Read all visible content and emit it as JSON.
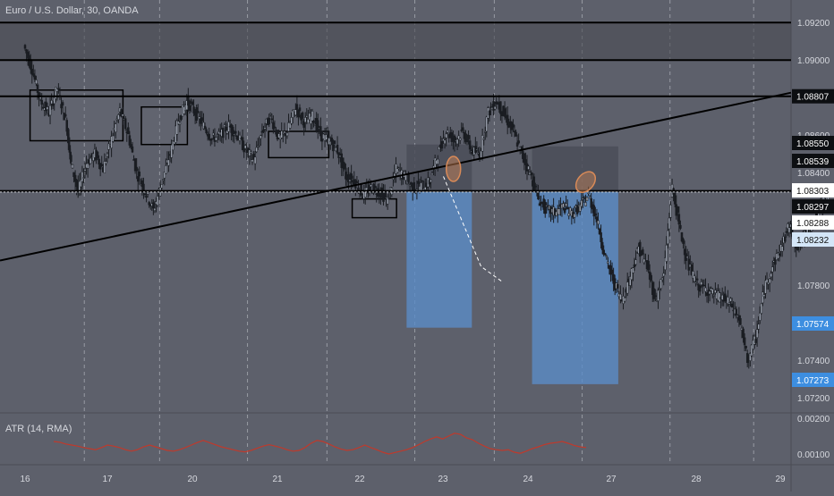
{
  "header": {
    "symbol_title": "Euro / U.S. Dollar, 30, OANDA"
  },
  "indicator": {
    "label": "ATR (14, RMA)"
  },
  "colors": {
    "background": "#5d606b",
    "candle": "#1a1d22",
    "line": "#000000",
    "grid": "#c8cbd2",
    "atr_line": "#c0392b",
    "long_target_box": "#5b8cc7",
    "stop_box": "#4a4d58",
    "highlight_box": "#4b4d53",
    "label_black": "#0d0f12",
    "label_white": "#ffffff",
    "label_blue": "#3d8ee0",
    "label_light_blue": "#d4e6f8",
    "ellipse": "#d88a58"
  },
  "chart_data": [
    {
      "type": "candlestick",
      "title": "Euro / U.S. Dollar, 30, OANDA",
      "x_tick_labels": [
        "16",
        "17",
        "20",
        "21",
        "22",
        "23",
        "24",
        "27",
        "28",
        "29"
      ],
      "y_tick_labels": [
        "1.09200",
        "1.09000",
        "1.08600",
        "1.08400",
        "1.07800",
        "1.07400",
        "1.07200"
      ],
      "ylim": [
        1.0712,
        1.0932
      ],
      "grid": true,
      "horizontal_levels": [
        1.092,
        1.09,
        1.08807,
        1.08303
      ],
      "price_labels": [
        {
          "value": 1.08807,
          "text": "1.08807",
          "style": "black"
        },
        {
          "value": 1.0855,
          "text": "1.08550",
          "style": "black"
        },
        {
          "value": 1.08539,
          "text": "1.08539",
          "style": "black"
        },
        {
          "value": 1.08303,
          "text": "1.08303",
          "style": "white"
        },
        {
          "value": 1.08297,
          "text": "1.08297",
          "style": "black"
        },
        {
          "value": 1.08288,
          "text": "1.08288",
          "style": "white"
        },
        {
          "value": 1.08232,
          "text": "1.08232",
          "style": "lightblue"
        },
        {
          "value": 1.07574,
          "text": "1.07574",
          "style": "blue"
        },
        {
          "value": 1.07273,
          "text": "1.07273",
          "style": "blue"
        }
      ],
      "trendline": {
        "start": [
          1.0,
          1.0796
        ],
        "end": [
          9.35,
          1.0875
        ]
      },
      "consolidation_boxes": [
        {
          "x0": 1.06,
          "x1": 2.17,
          "y0": 1.0857,
          "y1": 1.0884
        },
        {
          "x0": 2.39,
          "x1": 2.94,
          "y0": 1.0855,
          "y1": 1.0875
        },
        {
          "x0": 3.91,
          "x1": 4.63,
          "y0": 1.0848,
          "y1": 1.0862
        },
        {
          "x0": 4.91,
          "x1": 5.44,
          "y0": 1.0816,
          "y1": 1.0826
        }
      ],
      "trade_positions": [
        {
          "side": "short",
          "x0": 5.56,
          "x1": 6.34,
          "entry": 1.083,
          "stop": 1.0855,
          "target": 1.07574
        },
        {
          "side": "short",
          "x0": 7.06,
          "x1": 8.09,
          "entry": 1.083,
          "stop": 1.0854,
          "target": 1.07273
        }
      ],
      "price_path": [
        [
          1.0,
          1.0908
        ],
        [
          1.1,
          1.0895
        ],
        [
          1.2,
          1.0878
        ],
        [
          1.3,
          1.0872
        ],
        [
          1.4,
          1.0885
        ],
        [
          1.5,
          1.0868
        ],
        [
          1.55,
          1.0848
        ],
        [
          1.65,
          1.083
        ],
        [
          1.75,
          1.0845
        ],
        [
          1.85,
          1.085
        ],
        [
          1.95,
          1.0842
        ],
        [
          2.05,
          1.0858
        ],
        [
          2.15,
          1.0873
        ],
        [
          2.25,
          1.086
        ],
        [
          2.35,
          1.084
        ],
        [
          2.45,
          1.083
        ],
        [
          2.55,
          1.082
        ],
        [
          2.65,
          1.0835
        ],
        [
          2.75,
          1.085
        ],
        [
          2.85,
          1.0868
        ],
        [
          2.95,
          1.0878
        ],
        [
          3.05,
          1.0872
        ],
        [
          3.15,
          1.0865
        ],
        [
          3.25,
          1.0858
        ],
        [
          3.35,
          1.086
        ],
        [
          3.45,
          1.0865
        ],
        [
          3.55,
          1.086
        ],
        [
          3.65,
          1.0852
        ],
        [
          3.75,
          1.0847
        ],
        [
          3.85,
          1.0862
        ],
        [
          3.95,
          1.087
        ],
        [
          4.05,
          1.0858
        ],
        [
          4.15,
          1.0862
        ],
        [
          4.25,
          1.0875
        ],
        [
          4.35,
          1.0867
        ],
        [
          4.45,
          1.087
        ],
        [
          4.55,
          1.086
        ],
        [
          4.65,
          1.0857
        ],
        [
          4.75,
          1.0852
        ],
        [
          4.85,
          1.0838
        ],
        [
          4.95,
          1.0836
        ],
        [
          5.05,
          1.0828
        ],
        [
          5.15,
          1.0832
        ],
        [
          5.25,
          1.083
        ],
        [
          5.35,
          1.0825
        ],
        [
          5.45,
          1.0842
        ],
        [
          5.55,
          1.0838
        ],
        [
          5.65,
          1.0832
        ],
        [
          5.75,
          1.0833
        ],
        [
          5.85,
          1.0835
        ],
        [
          5.95,
          1.085
        ],
        [
          6.05,
          1.0862
        ],
        [
          6.15,
          1.0857
        ],
        [
          6.25,
          1.0862
        ],
        [
          6.35,
          1.0852
        ],
        [
          6.45,
          1.085
        ],
        [
          6.55,
          1.0872
        ],
        [
          6.65,
          1.0878
        ],
        [
          6.75,
          1.087
        ],
        [
          6.85,
          1.0862
        ],
        [
          6.95,
          1.085
        ],
        [
          7.05,
          1.084
        ],
        [
          7.15,
          1.0826
        ],
        [
          7.25,
          1.082
        ],
        [
          7.35,
          1.0819
        ],
        [
          7.45,
          1.0822
        ],
        [
          7.55,
          1.0818
        ],
        [
          7.65,
          1.0822
        ],
        [
          7.75,
          1.0828
        ],
        [
          7.85,
          1.0815
        ],
        [
          7.95,
          1.0795
        ],
        [
          8.05,
          1.0782
        ],
        [
          8.15,
          1.0772
        ],
        [
          8.25,
          1.0785
        ],
        [
          8.35,
          1.08
        ],
        [
          8.45,
          1.079
        ],
        [
          8.55,
          1.0772
        ],
        [
          8.65,
          1.0786
        ],
        [
          8.75,
          1.0832
        ],
        [
          8.85,
          1.0808
        ],
        [
          8.95,
          1.079
        ],
        [
          9.05,
          1.078
        ],
        [
          9.15,
          1.0778
        ],
        [
          9.25,
          1.0775
        ],
        [
          9.35,
          1.0773
        ],
        [
          9.45,
          1.077
        ],
        [
          9.55,
          1.0762
        ],
        [
          9.65,
          1.074
        ],
        [
          9.75,
          1.0752
        ],
        [
          9.85,
          1.0778
        ],
        [
          9.95,
          1.079
        ],
        [
          10.05,
          1.08
        ],
        [
          10.15,
          1.0812
        ],
        [
          10.25,
          1.08
        ],
        [
          10.35,
          1.0808
        ],
        [
          10.45,
          1.0815
        ],
        [
          10.55,
          1.0825
        ],
        [
          10.65,
          1.083
        ]
      ]
    },
    {
      "type": "line",
      "title": "ATR (14, RMA)",
      "y_tick_labels": [
        "0.00200",
        "0.00100"
      ],
      "ylim": [
        0.0007,
        0.0021
      ],
      "series": [
        {
          "values": [
            0.00135,
            0.00133,
            0.00128,
            0.00125,
            0.00122,
            0.00118,
            0.00115,
            0.00112,
            0.00118,
            0.00125,
            0.00122,
            0.00118,
            0.00112,
            0.00108,
            0.00112,
            0.0012,
            0.00125,
            0.0012,
            0.00115,
            0.0011,
            0.00108,
            0.00112,
            0.00118,
            0.00125,
            0.00132,
            0.00138,
            0.00132,
            0.00126,
            0.0012,
            0.00116,
            0.00112,
            0.00108,
            0.00106,
            0.0011,
            0.00116,
            0.00122,
            0.00126,
            0.00122,
            0.00118,
            0.00112,
            0.00108,
            0.0011,
            0.00118,
            0.0013,
            0.00138,
            0.00135,
            0.00128,
            0.0012,
            0.00114,
            0.0011,
            0.00112,
            0.00118,
            0.00125,
            0.00118,
            0.00112,
            0.00105,
            0.001,
            0.00104,
            0.00108,
            0.00112,
            0.00118,
            0.00126,
            0.00135,
            0.00142,
            0.00148,
            0.00142,
            0.0015,
            0.00158,
            0.00155,
            0.00145,
            0.0014,
            0.0013,
            0.00122,
            0.00115,
            0.00112,
            0.0011,
            0.00112,
            0.00105,
            0.00102,
            0.00108,
            0.00115,
            0.0012,
            0.00126,
            0.0013,
            0.00132,
            0.00135,
            0.0013,
            0.00124,
            0.0012,
            0.00118
          ]
        }
      ]
    }
  ]
}
